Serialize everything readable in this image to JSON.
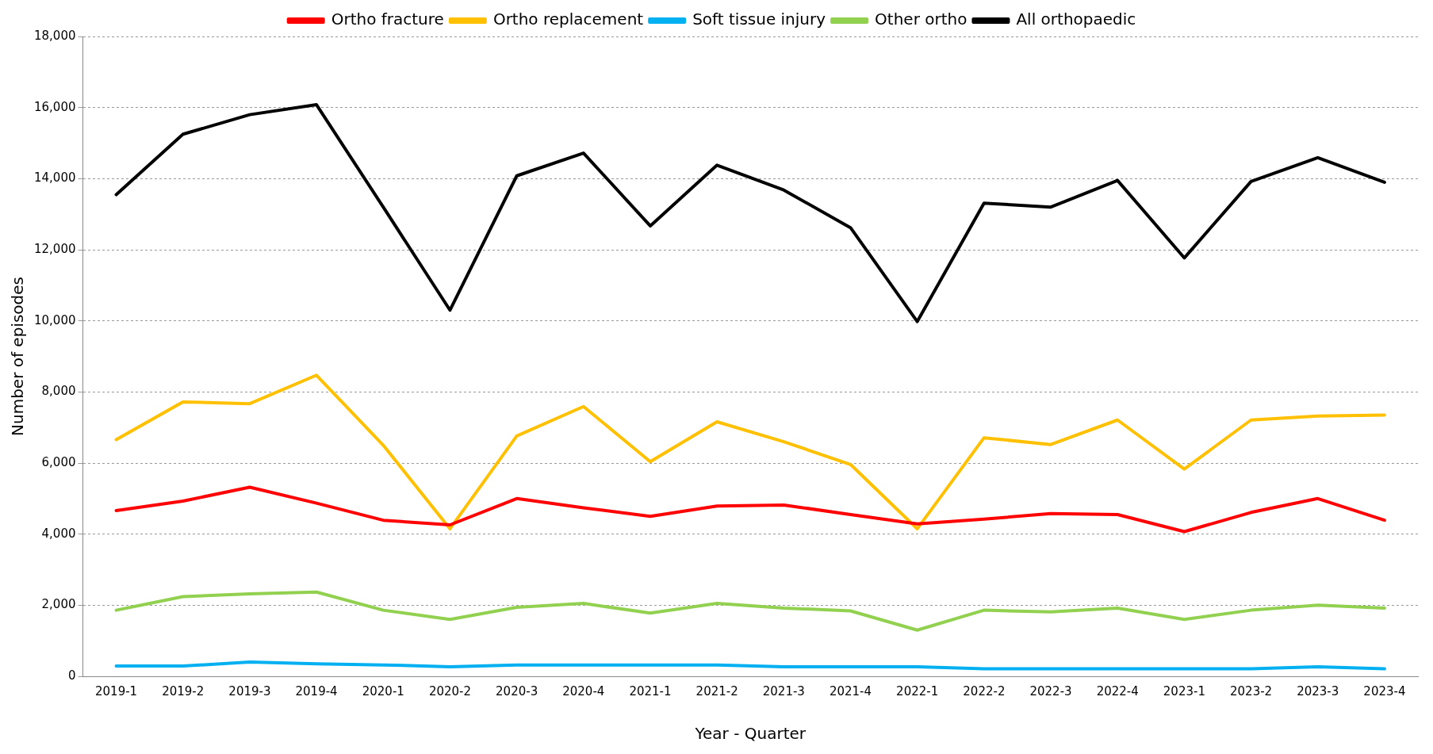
{
  "chart_data": {
    "type": "line",
    "xlabel": "Year - Quarter",
    "ylabel": "Number of episodes",
    "categories": [
      "2019-1",
      "2019-2",
      "2019-3",
      "2019-4",
      "2020-1",
      "2020-2",
      "2020-3",
      "2020-4",
      "2021-1",
      "2021-2",
      "2021-3",
      "2021-4",
      "2022-1",
      "2022-2",
      "2022-3",
      "2022-4",
      "2023-1",
      "2023-2",
      "2023-3",
      "2023-4"
    ],
    "series": [
      {
        "name": "Ortho fracture",
        "color": "#ff0000",
        "values": [
          4660,
          4930,
          5320,
          4870,
          4390,
          4260,
          5000,
          4740,
          4500,
          4790,
          4820,
          4550,
          4290,
          4420,
          4580,
          4550,
          4070,
          4610,
          5000,
          4390
        ]
      },
      {
        "name": "Ortho replacement",
        "color": "#ffc000",
        "values": [
          6660,
          7720,
          7670,
          8470,
          6500,
          4150,
          6760,
          7590,
          6040,
          7160,
          6600,
          5960,
          4150,
          6710,
          6520,
          7210,
          5830,
          7210,
          7320,
          7350
        ]
      },
      {
        "name": "Soft tissue injury",
        "color": "#00b0f0",
        "values": [
          290,
          290,
          400,
          350,
          320,
          270,
          320,
          320,
          320,
          320,
          270,
          270,
          270,
          210,
          210,
          210,
          210,
          210,
          270,
          210
        ]
      },
      {
        "name": "Other ortho",
        "color": "#92d050",
        "values": [
          1860,
          2240,
          2320,
          2370,
          1860,
          1600,
          1940,
          2050,
          1780,
          2050,
          1920,
          1840,
          1300,
          1860,
          1810,
          1920,
          1600,
          1860,
          2000,
          1920
        ]
      },
      {
        "name": "All orthopaedic",
        "color": "#000000",
        "values": [
          13550,
          15250,
          15800,
          16080,
          13200,
          10300,
          14080,
          14720,
          12670,
          14380,
          13680,
          12620,
          9980,
          13310,
          13200,
          13950,
          11770,
          13920,
          14590,
          13900
        ]
      }
    ],
    "ylim": [
      0,
      18000
    ],
    "yticks": [
      0,
      {
        "value": 2000,
        "label": "2,000"
      },
      {
        "value": 4000,
        "label": "4,000"
      },
      {
        "value": 6000,
        "label": "6,000"
      },
      {
        "value": 8000,
        "label": "8,000"
      },
      {
        "value": 10000,
        "label": "10,000"
      },
      {
        "value": 12000,
        "label": "12,000"
      },
      {
        "value": 14000,
        "label": "14,000"
      },
      {
        "value": 16000,
        "label": "16,000"
      },
      {
        "value": 18000,
        "label": "18,000"
      }
    ],
    "grid": "y",
    "legend": "top",
    "marker": "none",
    "line_style": "solid"
  }
}
